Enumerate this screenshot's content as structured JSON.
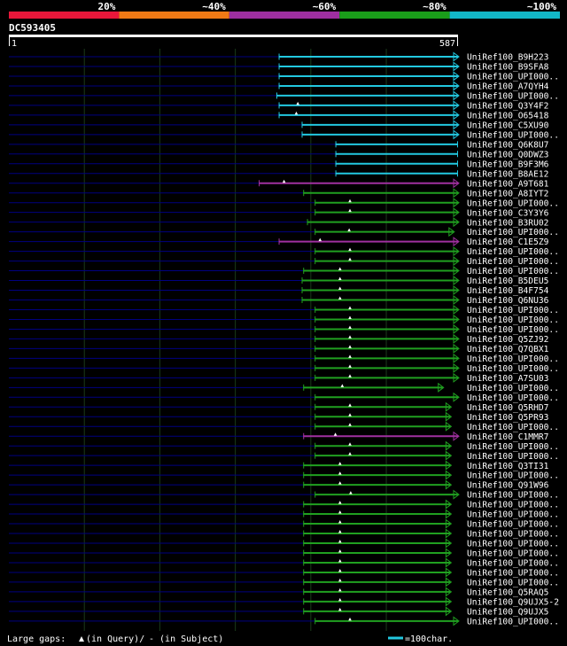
{
  "legend_scale": {
    "labels": [
      "20%",
      "~40%",
      "~60%",
      "~80%",
      "~100%"
    ],
    "colors": [
      "#e8173a",
      "#f07a15",
      "#9e2fa0",
      "#1a9e1a",
      "#12b8c8"
    ]
  },
  "query": {
    "name": "DC593405",
    "start_label": "1",
    "end_label": "587",
    "length": 587
  },
  "colors": {
    "cyan": "#22c8e0",
    "magenta": "#a030a0",
    "green": "#20a020",
    "gap_line": "#000080",
    "grid": "#1a3a1a",
    "marker": "#ffffff"
  },
  "hits": [
    {
      "name": "UniRef100_B9H223",
      "start": 353,
      "end": 587,
      "cls": "cyan",
      "end_marker": true
    },
    {
      "name": "UniRef100_B9SFA8",
      "start": 353,
      "end": 587,
      "cls": "cyan",
      "end_marker": true
    },
    {
      "name": "UniRef100_UPI000..",
      "start": 353,
      "end": 587,
      "cls": "cyan",
      "end_marker": true
    },
    {
      "name": "UniRef100_A7QYH4",
      "start": 353,
      "end": 587,
      "cls": "cyan",
      "end_marker": true
    },
    {
      "name": "UniRef100_UPI000..",
      "start": 350,
      "end": 587,
      "cls": "cyan",
      "end_marker": true
    },
    {
      "name": "UniRef100_Q3Y4F2",
      "start": 353,
      "end": 587,
      "cls": "cyan",
      "gap": 378,
      "end_marker": true
    },
    {
      "name": "UniRef100_O65418",
      "start": 353,
      "end": 587,
      "cls": "cyan",
      "gap": 376,
      "end_marker": true
    },
    {
      "name": "UniRef100_C5XU90",
      "start": 383,
      "end": 587,
      "cls": "cyan",
      "end_marker": true
    },
    {
      "name": "UniRef100_UPI000..",
      "start": 383,
      "end": 587,
      "cls": "cyan",
      "end_marker": true
    },
    {
      "name": "UniRef100_Q6K8U7",
      "start": 427,
      "end": 587,
      "cls": "cyan"
    },
    {
      "name": "UniRef100_Q0DWZ3",
      "start": 427,
      "end": 587,
      "cls": "cyan"
    },
    {
      "name": "UniRef100_B9F3M6",
      "start": 427,
      "end": 587,
      "cls": "cyan"
    },
    {
      "name": "UniRef100_B8AE12",
      "start": 427,
      "end": 587,
      "cls": "cyan"
    },
    {
      "name": "UniRef100_A9T681",
      "start": 327,
      "end": 587,
      "cls": "magenta",
      "gap": 360,
      "end_marker": true
    },
    {
      "name": "UniRef100_A8IYT2",
      "start": 385,
      "end": 587,
      "cls": "green",
      "end_marker": true
    },
    {
      "name": "UniRef100_UPI000..",
      "start": 400,
      "end": 587,
      "cls": "green",
      "gap": 446,
      "end_marker": true
    },
    {
      "name": "UniRef100_C3Y3Y6",
      "start": 400,
      "end": 587,
      "cls": "green",
      "gap": 446,
      "end_marker": true
    },
    {
      "name": "UniRef100_B3RU02",
      "start": 390,
      "end": 587,
      "cls": "green",
      "end_marker": true
    },
    {
      "name": "UniRef100_UPI000..",
      "start": 400,
      "end": 581,
      "cls": "green",
      "gap": 445,
      "end_marker": true
    },
    {
      "name": "UniRef100_C1E5Z9",
      "start": 353,
      "end": 587,
      "cls": "magenta",
      "gap": 407,
      "end_marker": true
    },
    {
      "name": "UniRef100_UPI000..",
      "start": 400,
      "end": 587,
      "cls": "green",
      "gap": 446,
      "end_marker": true
    },
    {
      "name": "UniRef100_UPI000..",
      "start": 400,
      "end": 587,
      "cls": "green",
      "gap": 446,
      "end_marker": true
    },
    {
      "name": "UniRef100_UPI000..",
      "start": 385,
      "end": 587,
      "cls": "green",
      "gap": 433,
      "end_marker": true
    },
    {
      "name": "UniRef100_B5DEU5",
      "start": 383,
      "end": 587,
      "cls": "green",
      "gap": 433,
      "end_marker": true
    },
    {
      "name": "UniRef100_B4F754",
      "start": 383,
      "end": 587,
      "cls": "green",
      "gap": 433,
      "end_marker": true
    },
    {
      "name": "UniRef100_Q6NU36",
      "start": 383,
      "end": 587,
      "cls": "green",
      "gap": 433,
      "end_marker": true
    },
    {
      "name": "UniRef100_UPI000..",
      "start": 400,
      "end": 587,
      "cls": "green",
      "gap": 446,
      "end_marker": true
    },
    {
      "name": "UniRef100_UPI000..",
      "start": 400,
      "end": 587,
      "cls": "green",
      "gap": 446,
      "end_marker": true
    },
    {
      "name": "UniRef100_UPI000..",
      "start": 400,
      "end": 587,
      "cls": "green",
      "gap": 446,
      "end_marker": true
    },
    {
      "name": "UniRef100_Q5ZJ92",
      "start": 400,
      "end": 587,
      "cls": "green",
      "gap": 446,
      "end_marker": true
    },
    {
      "name": "UniRef100_Q7QBX1",
      "start": 400,
      "end": 587,
      "cls": "green",
      "gap": 446,
      "end_marker": true
    },
    {
      "name": "UniRef100_UPI000..",
      "start": 400,
      "end": 587,
      "cls": "green",
      "gap": 446,
      "end_marker": true
    },
    {
      "name": "UniRef100_UPI000..",
      "start": 400,
      "end": 587,
      "cls": "green",
      "gap": 446,
      "end_marker": true
    },
    {
      "name": "UniRef100_A7SU03",
      "start": 400,
      "end": 587,
      "cls": "green",
      "gap": 446,
      "end_marker": true
    },
    {
      "name": "UniRef100_UPI000..",
      "start": 385,
      "end": 567,
      "cls": "green",
      "gap": 436,
      "end_marker": true
    },
    {
      "name": "UniRef100_UPI000..",
      "start": 400,
      "end": 587,
      "cls": "green",
      "end_marker": true
    },
    {
      "name": "UniRef100_Q5RHD7",
      "start": 400,
      "end": 577,
      "cls": "green",
      "gap": 446,
      "end_marker": true
    },
    {
      "name": "UniRef100_Q5PR93",
      "start": 400,
      "end": 577,
      "cls": "green",
      "gap": 446,
      "end_marker": true
    },
    {
      "name": "UniRef100_UPI000..",
      "start": 400,
      "end": 577,
      "cls": "green",
      "gap": 446,
      "end_marker": true
    },
    {
      "name": "UniRef100_C1MMR7",
      "start": 385,
      "end": 587,
      "cls": "magenta",
      "gap": 427,
      "end_marker": true
    },
    {
      "name": "UniRef100_UPI000..",
      "start": 400,
      "end": 577,
      "cls": "green",
      "gap": 446,
      "end_marker": true
    },
    {
      "name": "UniRef100_UPI000..",
      "start": 400,
      "end": 577,
      "cls": "green",
      "gap": 446,
      "end_marker": true
    },
    {
      "name": "UniRef100_Q3TI31",
      "start": 385,
      "end": 577,
      "cls": "green",
      "gap": 433,
      "end_marker": true
    },
    {
      "name": "UniRef100_UPI000..",
      "start": 385,
      "end": 577,
      "cls": "green",
      "gap": 433,
      "end_marker": true
    },
    {
      "name": "UniRef100_Q91W96",
      "start": 385,
      "end": 577,
      "cls": "green",
      "gap": 433,
      "end_marker": true
    },
    {
      "name": "UniRef100_UPI000..",
      "start": 400,
      "end": 587,
      "cls": "green",
      "gap": 447,
      "end_marker": true
    },
    {
      "name": "UniRef100_UPI000..",
      "start": 385,
      "end": 577,
      "cls": "green",
      "gap": 433,
      "end_marker": true
    },
    {
      "name": "UniRef100_UPI000..",
      "start": 385,
      "end": 577,
      "cls": "green",
      "gap": 433,
      "end_marker": true
    },
    {
      "name": "UniRef100_UPI000..",
      "start": 385,
      "end": 577,
      "cls": "green",
      "gap": 433,
      "end_marker": true
    },
    {
      "name": "UniRef100_UPI000..",
      "start": 385,
      "end": 577,
      "cls": "green",
      "gap": 433,
      "end_marker": true
    },
    {
      "name": "UniRef100_UPI000..",
      "start": 385,
      "end": 577,
      "cls": "green",
      "gap": 433,
      "end_marker": true
    },
    {
      "name": "UniRef100_UPI000..",
      "start": 385,
      "end": 577,
      "cls": "green",
      "gap": 433,
      "end_marker": true
    },
    {
      "name": "UniRef100_UPI000..",
      "start": 385,
      "end": 577,
      "cls": "green",
      "gap": 433,
      "end_marker": true
    },
    {
      "name": "UniRef100_UPI000..",
      "start": 385,
      "end": 577,
      "cls": "green",
      "gap": 433,
      "end_marker": true
    },
    {
      "name": "UniRef100_UPI000..",
      "start": 385,
      "end": 577,
      "cls": "green",
      "gap": 433,
      "end_marker": true
    },
    {
      "name": "UniRef100_Q5RAQ5",
      "start": 385,
      "end": 577,
      "cls": "green",
      "gap": 433,
      "end_marker": true
    },
    {
      "name": "UniRef100_Q9UJX5-2",
      "start": 385,
      "end": 577,
      "cls": "green",
      "gap": 433,
      "end_marker": true
    },
    {
      "name": "UniRef100_Q9UJX5",
      "start": 385,
      "end": 577,
      "cls": "green",
      "gap": 433,
      "end_marker": true
    },
    {
      "name": "UniRef100_UPI000..",
      "start": 400,
      "end": 587,
      "cls": "green",
      "gap": 446,
      "end_marker": true
    }
  ],
  "footer": {
    "gaps_label": "Large gaps:",
    "query_gap_text": "(in Query)/",
    "subject_gap_text": "- (in Subject)",
    "scale_text": "=100char."
  }
}
